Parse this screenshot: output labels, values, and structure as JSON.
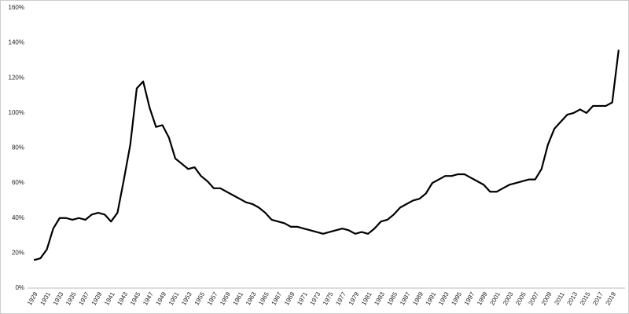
{
  "chart_data": {
    "type": "line",
    "x": [
      1929,
      1930,
      1931,
      1932,
      1933,
      1934,
      1935,
      1936,
      1937,
      1938,
      1939,
      1940,
      1941,
      1942,
      1943,
      1944,
      1945,
      1946,
      1947,
      1948,
      1949,
      1950,
      1951,
      1952,
      1953,
      1954,
      1955,
      1956,
      1957,
      1958,
      1959,
      1960,
      1961,
      1962,
      1963,
      1964,
      1965,
      1966,
      1967,
      1968,
      1969,
      1970,
      1971,
      1972,
      1973,
      1974,
      1975,
      1976,
      1977,
      1978,
      1979,
      1980,
      1981,
      1982,
      1983,
      1984,
      1985,
      1986,
      1987,
      1988,
      1989,
      1990,
      1991,
      1992,
      1993,
      1994,
      1995,
      1996,
      1997,
      1998,
      1999,
      2000,
      2001,
      2002,
      2003,
      2004,
      2005,
      2006,
      2007,
      2008,
      2009,
      2010,
      2011,
      2012,
      2013,
      2014,
      2015,
      2016,
      2017,
      2018,
      2019,
      2020
    ],
    "values": [
      16,
      17,
      22,
      34,
      40,
      40,
      39,
      40,
      39,
      42,
      43,
      42,
      38,
      43,
      62,
      82,
      114,
      118,
      103,
      92,
      93,
      86,
      74,
      71,
      68,
      69,
      64,
      61,
      57,
      57,
      55,
      53,
      51,
      49,
      48,
      46,
      43,
      39,
      38,
      37,
      35,
      35,
      34,
      33,
      32,
      31,
      32,
      33,
      34,
      33,
      31,
      32,
      31,
      34,
      38,
      39,
      42,
      46,
      48,
      50,
      51,
      54,
      60,
      62,
      64,
      64,
      65,
      65,
      63,
      61,
      59,
      55,
      55,
      57,
      59,
      60,
      61,
      62,
      62,
      68,
      82,
      91,
      95,
      99,
      100,
      102,
      100,
      104,
      104,
      104,
      106,
      136
    ],
    "color": "#000000",
    "xlim": [
      1928,
      2021
    ],
    "xticks": [
      1929,
      1931,
      1933,
      1935,
      1937,
      1939,
      1941,
      1943,
      1945,
      1947,
      1949,
      1951,
      1953,
      1955,
      1957,
      1959,
      1961,
      1963,
      1965,
      1967,
      1969,
      1971,
      1973,
      1975,
      1977,
      1979,
      1981,
      1983,
      1985,
      1987,
      1989,
      1991,
      1993,
      1995,
      1997,
      1999,
      2001,
      2003,
      2005,
      2007,
      2009,
      2011,
      2013,
      2015,
      2017,
      2019
    ],
    "ylim": [
      0,
      160
    ],
    "yticks": [
      {
        "value": 0,
        "label": "0%"
      },
      {
        "value": 20,
        "label": "20%"
      },
      {
        "value": 40,
        "label": "40%"
      },
      {
        "value": 60,
        "label": "60%"
      },
      {
        "value": 80,
        "label": "80%"
      },
      {
        "value": 100,
        "label": "100%"
      },
      {
        "value": 120,
        "label": "120%"
      },
      {
        "value": 140,
        "label": "140%"
      },
      {
        "value": 160,
        "label": "160%"
      }
    ],
    "grid": false
  }
}
